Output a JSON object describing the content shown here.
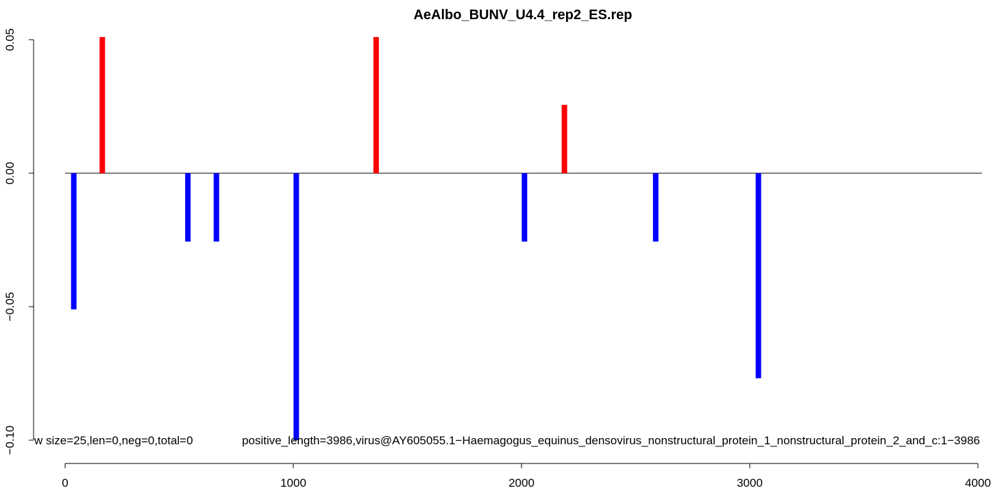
{
  "chart_data": {
    "type": "bar",
    "title": "AeAlbo_BUNV_U4.4_rep2_ES.rep",
    "xlabel": "",
    "ylabel": "",
    "xlim": [
      0,
      4000
    ],
    "ylim": [
      -0.1,
      0.05
    ],
    "x_ticks": [
      "0",
      "1000",
      "2000",
      "3000",
      "4000"
    ],
    "y_ticks": [
      "0.05",
      "0.00",
      "−0.05",
      "−0.10"
    ],
    "grid": false,
    "legend": "none",
    "colors": {
      "positive": "#ff0000",
      "negative": "#0000ff",
      "baseline": "#000000"
    },
    "bars": [
      {
        "x": 38,
        "y": -0.051
      },
      {
        "x": 163,
        "y": 0.051
      },
      {
        "x": 538,
        "y": -0.0256
      },
      {
        "x": 663,
        "y": -0.0256
      },
      {
        "x": 1013,
        "y": -0.1
      },
      {
        "x": 1363,
        "y": 0.051
      },
      {
        "x": 2013,
        "y": -0.0256
      },
      {
        "x": 2188,
        "y": 0.0256
      },
      {
        "x": 2588,
        "y": -0.0256
      },
      {
        "x": 3038,
        "y": -0.0768
      }
    ],
    "annotations": [
      "w size=25,len=0,neg=0,total=0",
      "positive_length=3986,virus@AY605055.1−Haemagogus_equinus_densovirus_nonstructural_protein_1_nonstructural_protein_2_and_c:1−3986"
    ]
  }
}
